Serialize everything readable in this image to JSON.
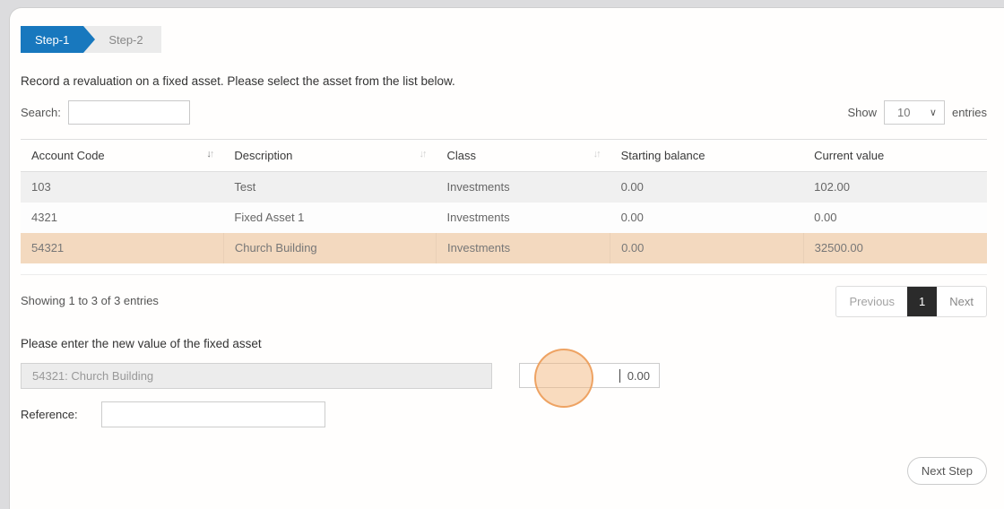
{
  "wizard": {
    "steps": [
      {
        "label": "Step-1",
        "active": true
      },
      {
        "label": "Step-2",
        "active": false
      }
    ]
  },
  "intro": "Record a revaluation on a fixed asset. Please select the asset from the list below.",
  "search": {
    "label": "Search:",
    "value": ""
  },
  "length_menu": {
    "prefix": "Show",
    "selected": "10",
    "suffix": "entries"
  },
  "table": {
    "columns": [
      {
        "label": "Account Code",
        "sort": "active"
      },
      {
        "label": "Description",
        "sort": "idle"
      },
      {
        "label": "Class",
        "sort": "idle"
      },
      {
        "label": "Starting balance",
        "sort": "none"
      },
      {
        "label": "Current value",
        "sort": "none"
      }
    ],
    "rows": [
      {
        "account_code": "103",
        "description": "Test",
        "asset_class": "Investments",
        "starting_balance": "0.00",
        "current_value": "102.00"
      },
      {
        "account_code": "4321",
        "description": "Fixed Asset 1",
        "asset_class": "Investments",
        "starting_balance": "0.00",
        "current_value": "0.00"
      },
      {
        "account_code": "54321",
        "description": "Church Building",
        "asset_class": "Investments",
        "starting_balance": "0.00",
        "current_value": "32500.00"
      }
    ],
    "info": "Showing 1 to 3 of 3 entries"
  },
  "pagination": {
    "previous": "Previous",
    "page": "1",
    "next": "Next"
  },
  "new_value_section": {
    "heading": "Please enter the new value of the fixed asset",
    "asset_field_value": "54321: Church Building",
    "value_field_value": "0.00",
    "reference_label": "Reference:"
  },
  "next_step_label": "Next Step",
  "colors": {
    "active_step": "#1878be",
    "selected_row": "#f3d9bf",
    "highlight_circle": "#ec9954"
  }
}
